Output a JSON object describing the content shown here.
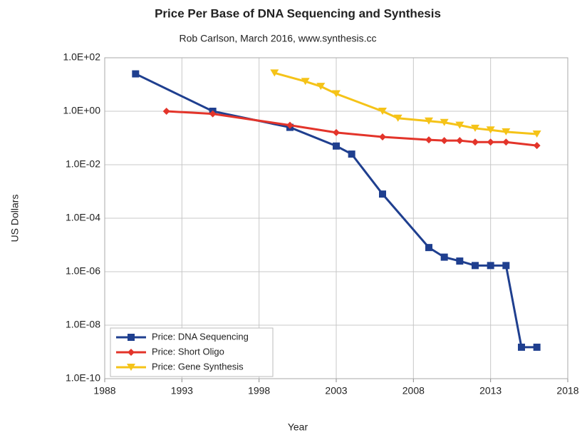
{
  "chart_data": {
    "type": "line",
    "title": "Price Per Base of DNA Sequencing and Synthesis",
    "subtitle": "Rob Carlson, March 2016, www.synthesis.cc",
    "xlabel": "Year",
    "ylabel": "US Dollars",
    "log_y": true,
    "grid": true,
    "legend": "lower left",
    "xlim": [
      1988,
      2018
    ],
    "xticks": [
      1988,
      1993,
      1998,
      2003,
      2008,
      2013,
      2018
    ],
    "ylim": [
      1e-10,
      100
    ],
    "yticks": [
      {
        "value": 1e-10,
        "label": "1.0E-10"
      },
      {
        "value": 1e-08,
        "label": "1.0E-08"
      },
      {
        "value": 1e-06,
        "label": "1.0E-06"
      },
      {
        "value": 0.0001,
        "label": "1.0E-04"
      },
      {
        "value": 0.01,
        "label": "1.0E-02"
      },
      {
        "value": 1,
        "label": "1.0E+00"
      },
      {
        "value": 100,
        "label": "1.0E+02"
      }
    ],
    "series": [
      {
        "name": "Price: DNA Sequencing",
        "color": "#1f3f8f",
        "marker": "square",
        "x": [
          1990,
          1995,
          2000,
          2003,
          2004,
          2006,
          2009,
          2010,
          2011,
          2012,
          2013,
          2014,
          2015,
          2016
        ],
        "values": [
          25,
          1,
          0.25,
          0.05,
          0.025,
          0.0008,
          8e-06,
          3.5e-06,
          2.5e-06,
          1.7e-06,
          1.7e-06,
          1.7e-06,
          1.5e-09,
          1.5e-09
        ]
      },
      {
        "name": "Price: Short Oligo",
        "color": "#e3342a",
        "marker": "diamond",
        "x": [
          1992,
          1995,
          2000,
          2003,
          2006,
          2009,
          2010,
          2011,
          2012,
          2013,
          2014,
          2016
        ],
        "values": [
          1,
          0.8,
          0.3,
          0.16,
          0.11,
          0.085,
          0.08,
          0.08,
          0.07,
          0.07,
          0.07,
          0.052
        ]
      },
      {
        "name": "Price: Gene Synthesis",
        "color": "#f5c318",
        "marker": "triangle",
        "x": [
          1999,
          2001,
          2002,
          2003,
          2006,
          2007,
          2009,
          2010,
          2011,
          2012,
          2013,
          2014,
          2016
        ],
        "values": [
          27,
          13,
          8.5,
          4.5,
          1,
          0.55,
          0.43,
          0.38,
          0.3,
          0.23,
          0.2,
          0.17,
          0.14
        ]
      }
    ]
  }
}
